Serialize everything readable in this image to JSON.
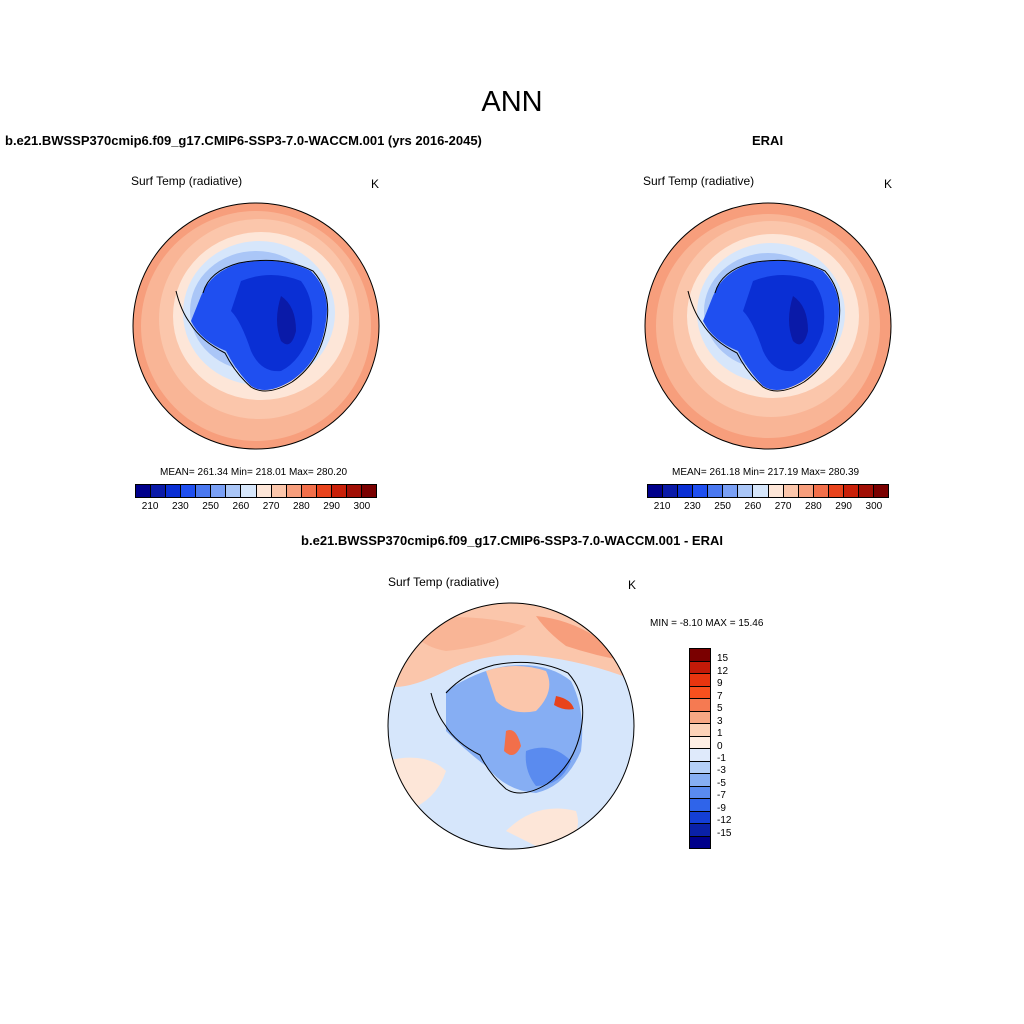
{
  "title": "ANN",
  "case_title": "b.e21.BWSSP370cmip6.f09_g17.CMIP6-SSP3-7.0-WACCM.001 (yrs 2016-2045)",
  "obs_title": "ERAI",
  "diff_title": "b.e21.BWSSP370cmip6.f09_g17.CMIP6-SSP3-7.0-WACCM.001 - ERAI",
  "variable": "Surf Temp (radiative)",
  "units": "K",
  "panels": [
    {
      "stats": "MEAN= 261.34  Min= 218.01  Max= 280.20"
    },
    {
      "stats": "MEAN= 261.18  Min= 217.19  Max= 280.39"
    }
  ],
  "diff_stats": "MIN =  -8.10 MAX =  15.46",
  "colorbar_abs": {
    "colors": [
      "#00008b",
      "#0a1aa8",
      "#0a2fd4",
      "#1f4ff0",
      "#4a78f0",
      "#7aa0f5",
      "#aac6f7",
      "#d6e6fb",
      "#fde6d8",
      "#fbc6ab",
      "#f79e7c",
      "#f26f4a",
      "#e8431c",
      "#c92009",
      "#a10f05",
      "#7a0000"
    ],
    "tick_labels": [
      "210",
      "230",
      "250",
      "260",
      "270",
      "280",
      "290",
      "300"
    ]
  },
  "colorbar_diff": {
    "colors": [
      "#7a0000",
      "#c21a08",
      "#e8350f",
      "#f8501e",
      "#f57a52",
      "#f7a784",
      "#fcd2b8",
      "#fdeee4",
      "#dfeafb",
      "#b4cff7",
      "#86aef3",
      "#5a8bef",
      "#2f64ea",
      "#143fd6",
      "#0a21a8",
      "#00008b"
    ],
    "tick_labels": [
      "15",
      "12",
      "9",
      "7",
      "5",
      "3",
      "1",
      "0",
      "-1",
      "-3",
      "-5",
      "-7",
      "-9",
      "-12",
      "-15"
    ]
  },
  "chart_data": {
    "type": "heatmap",
    "projection": "south-polar-stereographic",
    "panels": [
      {
        "name": "b.e21.BWSSP370cmip6.f09_g17.CMIP6-SSP3-7.0-WACCM.001 (yrs 2016-2045)",
        "mean": 261.34,
        "min": 218.01,
        "max": 280.2,
        "levels": [
          210,
          220,
          230,
          240,
          250,
          255,
          260,
          265,
          270,
          275,
          280,
          285,
          290,
          295,
          300
        ]
      },
      {
        "name": "ERAI",
        "mean": 261.18,
        "min": 217.19,
        "max": 280.39,
        "levels": [
          210,
          220,
          230,
          240,
          250,
          255,
          260,
          265,
          270,
          275,
          280,
          285,
          290,
          295,
          300
        ]
      },
      {
        "name": "b.e21.BWSSP370cmip6.f09_g17.CMIP6-SSP3-7.0-WACCM.001 - ERAI",
        "min": -8.1,
        "max": 15.46,
        "levels": [
          -15,
          -12,
          -9,
          -7,
          -5,
          -3,
          -1,
          0,
          1,
          3,
          5,
          7,
          9,
          12,
          15
        ]
      }
    ]
  }
}
